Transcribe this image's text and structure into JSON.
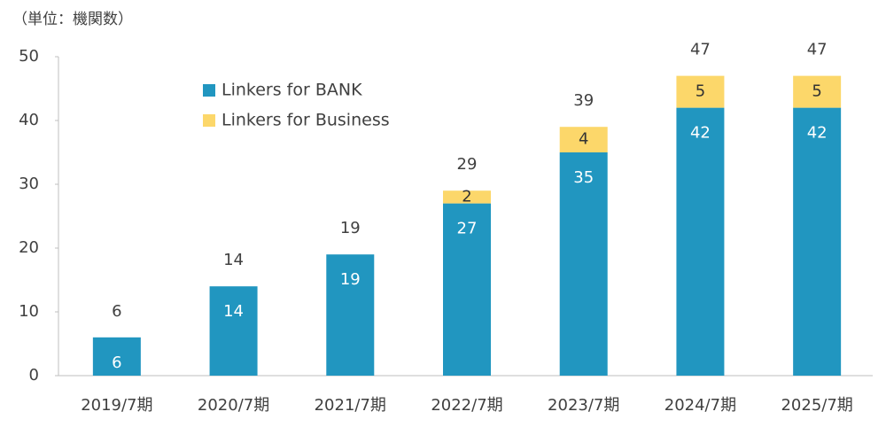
{
  "chart_data": {
    "type": "stacked_bar",
    "unit_label": "（単位：機関数）",
    "categories": [
      "2019/7期",
      "2020/7期",
      "2021/7期",
      "2022/7期",
      "2023/7期",
      "2024/7期",
      "2025/7期"
    ],
    "series": [
      {
        "name": "Linkers for BANK",
        "color": "#2196c0",
        "values": [
          6,
          14,
          19,
          27,
          35,
          42,
          42
        ]
      },
      {
        "name": "Linkers for Business",
        "color": "#fcd76a",
        "values": [
          null,
          null,
          null,
          2,
          4,
          5,
          5
        ]
      }
    ],
    "totals": [
      6,
      14,
      19,
      29,
      39,
      47,
      47
    ],
    "ylim": [
      0,
      50
    ],
    "yticks": [
      0,
      10,
      20,
      30,
      40,
      50
    ],
    "grid": false
  }
}
